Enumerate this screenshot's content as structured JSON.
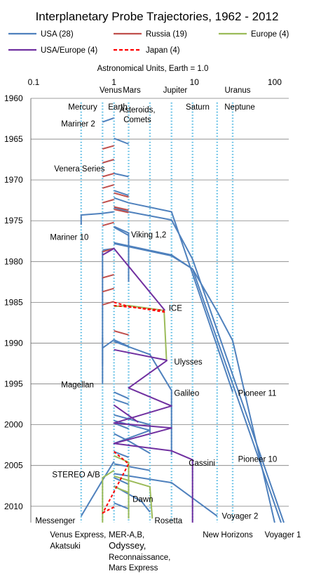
{
  "chart_data": {
    "type": "line",
    "title": "Interplanetary  Probe Trajectories, 1962 - 2012",
    "xlabel": "Astronomical Units,  Earth = 1.0",
    "xscale": "log",
    "xlim": [
      0.1,
      130
    ],
    "ylim": [
      1960,
      2012
    ],
    "y_reversed": true,
    "x_ticks": [
      "0.1",
      "1",
      "10",
      "100"
    ],
    "y_ticks": [
      "1960",
      "1965",
      "1970",
      "1975",
      "1980",
      "1985",
      "1990",
      "1995",
      "2000",
      "2005",
      "2010"
    ],
    "grid": "horizontal",
    "legend": [
      {
        "name": "USA (28)",
        "color": "#4f81bd",
        "dash": false
      },
      {
        "name": "Russia (19)",
        "color": "#c0504d",
        "dash": false
      },
      {
        "name": "Europe (4)",
        "color": "#9bbb59",
        "dash": false
      },
      {
        "name": "USA/Europe (4)",
        "color": "#7030a0",
        "dash": false
      },
      {
        "name": "Japan (4)",
        "color": "#ff0000",
        "dash": true
      }
    ],
    "planet_orbits": [
      {
        "name": "Mercury",
        "au": 0.39
      },
      {
        "name": "Venus",
        "au": 0.72
      },
      {
        "name": "Earth",
        "au": 1.0
      },
      {
        "name": "Mars",
        "au": 1.52
      },
      {
        "name": "Asteroids, Comets",
        "au": 2.8
      },
      {
        "name": "Jupiter",
        "au": 5.2
      },
      {
        "name": "Saturn",
        "au": 9.5
      },
      {
        "name": "Uranus",
        "au": 19.2
      },
      {
        "name": "Neptune",
        "au": 30
      }
    ],
    "planet_labels": [
      "Mercury",
      "Venus",
      "Earth",
      "Mars",
      "Asteroids,",
      "Comets",
      "Jupiter",
      "Saturn",
      "Uranus",
      "Neptune"
    ],
    "series": [
      {
        "group": "USA",
        "x": [
          1.0,
          0.72
        ],
        "y": [
          1962.4,
          1962.9
        ]
      },
      {
        "group": "USA",
        "x": [
          1.0,
          1.52
        ],
        "y": [
          1964.9,
          1965.6
        ]
      },
      {
        "group": "USA",
        "x": [
          1.0,
          0.72
        ],
        "y": [
          1967.5,
          1967.9
        ]
      },
      {
        "group": "USA",
        "x": [
          1.0,
          1.52
        ],
        "y": [
          1969.2,
          1969.6
        ]
      },
      {
        "group": "USA",
        "x": [
          1.0,
          1.52
        ],
        "y": [
          1971.3,
          1971.9
        ]
      },
      {
        "group": "USA",
        "x": [
          1.0,
          1.52,
          5.2,
          30
        ],
        "y": [
          1972.2,
          1972.8,
          1973.9,
          1996
        ]
      },
      {
        "group": "USA",
        "x": [
          1.0,
          1.52,
          5.2,
          9.5,
          130
        ],
        "y": [
          1973.4,
          1973.9,
          1974.9,
          1979.7,
          2012
        ]
      },
      {
        "group": "USA",
        "x": [
          1.0,
          0.72,
          0.39,
          0.39
        ],
        "y": [
          1973.9,
          1974.1,
          1974.3,
          1975.5
        ]
      },
      {
        "group": "USA",
        "x": [
          1.0,
          1.52,
          1.52
        ],
        "y": [
          1975.7,
          1976.5,
          1982.5
        ]
      },
      {
        "group": "USA",
        "x": [
          1.0,
          1.52,
          1.52
        ],
        "y": [
          1975.8,
          1976.8,
          1982.5
        ]
      },
      {
        "group": "USA",
        "x": [
          1.0,
          5.2,
          9.5,
          19.2,
          30,
          100
        ],
        "y": [
          1977.7,
          1979.2,
          1980.9,
          1986.1,
          1989.7,
          2012
        ]
      },
      {
        "group": "USA",
        "x": [
          1.0,
          5.2,
          9.5,
          120
        ],
        "y": [
          1977.8,
          1979.3,
          1980.9,
          2012
        ]
      },
      {
        "group": "USA",
        "x": [
          0.72,
          1.0
        ],
        "y": [
          1978.6,
          1978.4
        ]
      },
      {
        "group": "USA",
        "x": [
          0.72,
          0.72
        ],
        "y": [
          1978.7,
          1992.7
        ]
      },
      {
        "group": "USA",
        "x": [
          0.72,
          1.0,
          1.52
        ],
        "y": [
          1990.6,
          1989.6,
          1990.4
        ]
      },
      {
        "group": "USA",
        "x": [
          0.72,
          0.72
        ],
        "y": [
          1989.3,
          1995
        ]
      },
      {
        "group": "USA",
        "x": [
          1.0,
          2.8,
          5.2,
          5.2
        ],
        "y": [
          1989.8,
          1991.4,
          1995.8,
          2003.7
        ]
      },
      {
        "group": "USA",
        "x": [
          1.0,
          1.52
        ],
        "y": [
          1996.0,
          1996.8
        ]
      },
      {
        "group": "USA",
        "x": [
          1.0,
          1.52
        ],
        "y": [
          1996.9,
          1997.5
        ]
      },
      {
        "group": "USA",
        "x": [
          1.0,
          2.8,
          2.8
        ],
        "y": [
          1998.8,
          2000.0,
          2001.0
        ]
      },
      {
        "group": "USA",
        "x": [
          1.0,
          2.8,
          1.0
        ],
        "y": [
          1999.5,
          2000.7,
          2002.3
        ]
      },
      {
        "group": "USA",
        "x": [
          1.0,
          1.52
        ],
        "y": [
          1999.8,
          2000.5
        ]
      },
      {
        "group": "USA",
        "x": [
          1.0,
          1.52,
          2.8
        ],
        "y": [
          2001.1,
          2002.0,
          2003.5
        ]
      },
      {
        "group": "USA",
        "x": [
          1.0,
          1.52
        ],
        "y": [
          2003.3,
          2004.0
        ]
      },
      {
        "group": "USA",
        "x": [
          0.39,
          0.72,
          1.0
        ],
        "y": [
          2011.2,
          2006.8,
          2004.5
        ]
      },
      {
        "group": "USA",
        "x": [
          1.0,
          2.8
        ],
        "y": [
          2004.8,
          2005.6
        ]
      },
      {
        "group": "USA",
        "x": [
          1.0,
          5.2,
          19.2
        ],
        "y": [
          2006.0,
          2007.1,
          2011.2
        ]
      },
      {
        "group": "USA",
        "x": [
          1.0,
          1.52
        ],
        "y": [
          2006.5,
          2007.3
        ]
      },
      {
        "group": "USA",
        "x": [
          1.0,
          2.2,
          2.8
        ],
        "y": [
          2007.5,
          2009.4,
          2010.7
        ]
      },
      {
        "group": "USA",
        "x": [
          1.0,
          1.52
        ],
        "y": [
          2009.6,
          2010.3
        ]
      },
      {
        "group": "Russia",
        "x": [
          0.72,
          1.0
        ],
        "y": [
          1966.2,
          1965.8
        ]
      },
      {
        "group": "Russia",
        "x": [
          0.72,
          1.0
        ],
        "y": [
          1967.9,
          1967.5
        ]
      },
      {
        "group": "Russia",
        "x": [
          0.72,
          1.0
        ],
        "y": [
          1969.6,
          1969.2
        ]
      },
      {
        "group": "Russia",
        "x": [
          0.72,
          1.0
        ],
        "y": [
          1971.0,
          1970.6
        ]
      },
      {
        "group": "Russia",
        "x": [
          1.0,
          1.52
        ],
        "y": [
          1971.6,
          1972.1
        ]
      },
      {
        "group": "Russia",
        "x": [
          0.72,
          1.0
        ],
        "y": [
          1972.8,
          1972.4
        ]
      },
      {
        "group": "Russia",
        "x": [
          1.0,
          1.52
        ],
        "y": [
          1973.3,
          1973.7
        ]
      },
      {
        "group": "Russia",
        "x": [
          1.0,
          1.52
        ],
        "y": [
          1973.6,
          1974.0
        ]
      },
      {
        "group": "Russia",
        "x": [
          0.72,
          1.0
        ],
        "y": [
          1975.6,
          1975.2
        ]
      },
      {
        "group": "Russia",
        "x": [
          0.72,
          1.0
        ],
        "y": [
          1978.8,
          1978.4
        ]
      },
      {
        "group": "Russia",
        "x": [
          0.72,
          1.0
        ],
        "y": [
          1982.0,
          1981.6
        ]
      },
      {
        "group": "Russia",
        "x": [
          0.72,
          1.0
        ],
        "y": [
          1983.7,
          1983.3
        ]
      },
      {
        "group": "Russia",
        "x": [
          0.72,
          1.0
        ],
        "y": [
          1985.3,
          1984.9
        ]
      },
      {
        "group": "Russia",
        "x": [
          1.0,
          1.52
        ],
        "y": [
          1988.5,
          1989.0
        ]
      },
      {
        "group": "Europe",
        "x": [
          1.0,
          1.52,
          4.2
        ],
        "y": [
          1985.5,
          1985.4,
          1986.0
        ]
      },
      {
        "group": "Europe",
        "x": [
          4.2,
          4.5
        ],
        "y": [
          1986.0,
          1992.0
        ]
      },
      {
        "group": "Europe",
        "x": [
          0.72,
          1.0
        ],
        "y": [
          2006.5,
          2005.6
        ]
      },
      {
        "group": "Europe",
        "x": [
          0.72,
          0.72
        ],
        "y": [
          2006.5,
          2012.0
        ]
      },
      {
        "group": "Europe",
        "x": [
          1.0,
          1.52
        ],
        "y": [
          2003.8,
          2004.6
        ]
      },
      {
        "group": "Europe",
        "x": [
          1.52,
          1.52
        ],
        "y": [
          2004.6,
          2011.5
        ]
      },
      {
        "group": "Europe",
        "x": [
          1.0,
          2.8,
          3.0
        ],
        "y": [
          2006.3,
          2007.6,
          2011.5
        ]
      },
      {
        "group": "Europe",
        "x": [
          1.0,
          1.52
        ],
        "y": [
          2007.6,
          2008.3
        ]
      },
      {
        "group": "USA/Europe",
        "x": [
          0.72,
          1.0,
          4.3
        ],
        "y": [
          1979.2,
          1978.4,
          1986.0
        ]
      },
      {
        "group": "USA/Europe",
        "x": [
          1.0,
          4.6
        ],
        "y": [
          1990.8,
          1992.1
        ]
      },
      {
        "group": "USA/Europe",
        "x": [
          4.6,
          1.52,
          5.2,
          1.0,
          5.2,
          1.0,
          5.2,
          9.5,
          9.5
        ],
        "y": [
          1992.1,
          1995.5,
          1997.7,
          1999.8,
          2000.4,
          2002.3,
          2003.2,
          2004.3,
          2012.0
        ]
      },
      {
        "group": "USA/Europe",
        "x": [
          1.0,
          2.0
        ],
        "y": [
          1997.6,
          1999.7
        ]
      },
      {
        "group": "Japan",
        "x": [
          1.0,
          1.52,
          4.3
        ],
        "y": [
          1985.0,
          1985.5,
          1986.2
        ]
      },
      {
        "group": "Japan",
        "x": [
          1.0,
          4.2
        ],
        "y": [
          1985.4,
          1986.0
        ]
      },
      {
        "group": "Japan",
        "x": [
          1.0,
          1.52,
          0.72
        ],
        "y": [
          2003.3,
          2004.8,
          2010.9
        ]
      },
      {
        "group": "Japan",
        "x": [
          1.0,
          0.72
        ],
        "y": [
          2010.1,
          2010.8
        ]
      }
    ],
    "annotations": [
      {
        "text": "Mariner 2",
        "x": 0.22,
        "y": 1963.1
      },
      {
        "text": "Venera Series",
        "x": 0.18,
        "y": 1968.6
      },
      {
        "text": "Mariner 10",
        "x": 0.16,
        "y": 1977.0
      },
      {
        "text": "Viking 1,2",
        "x": 1.63,
        "y": 1976.7
      },
      {
        "text": "ICE",
        "x": 4.8,
        "y": 1985.7
      },
      {
        "text": "Ulysses",
        "x": 5.6,
        "y": 1992.3
      },
      {
        "text": "Magellan",
        "x": 0.22,
        "y": 1995.1
      },
      {
        "text": "Galileo",
        "x": 5.6,
        "y": 1996.1
      },
      {
        "text": "Pioneer 11",
        "x": 35,
        "y": 1996.1
      },
      {
        "text": "Cassini",
        "x": 8.5,
        "y": 2004.7
      },
      {
        "text": "Pioneer 10",
        "x": 35,
        "y": 2004.2
      },
      {
        "text": "STEREO  A/B",
        "x": 0.17,
        "y": 2006.1
      },
      {
        "text": "Dawn",
        "x": 1.7,
        "y": 2009.1
      },
      {
        "text": "Voyager 2",
        "x": 22,
        "y": 2011.2
      }
    ],
    "bottom_labels": [
      {
        "text": "Messenger",
        "x": 0.105,
        "row": 0
      },
      {
        "text": "Venus Express,",
        "x": 0.16,
        "row": 1
      },
      {
        "text": "Akatsuki",
        "x": 0.16,
        "row": 2
      },
      {
        "text": "MER-A,B,",
        "x": 0.86,
        "row": 1
      },
      {
        "text": "Odyssey,",
        "x": 0.86,
        "row": 2,
        "big": true
      },
      {
        "text": "Reconnaissance,",
        "x": 0.86,
        "row": 3
      },
      {
        "text": "Mars Express",
        "x": 0.86,
        "row": 4
      },
      {
        "text": "Rosetta",
        "x": 3.2,
        "row": 0
      },
      {
        "text": "New Horizons",
        "x": 12.7,
        "row": 1
      },
      {
        "text": "Voyager 1",
        "x": 75,
        "row": 1
      }
    ]
  },
  "colors": {
    "USA": "#4f81bd",
    "Russia": "#c0504d",
    "Europe": "#9bbb59",
    "USA/Europe": "#7030a0",
    "Japan": "#ff0000",
    "orbit": "#5bbce4",
    "grid": "#7f7f7f"
  }
}
